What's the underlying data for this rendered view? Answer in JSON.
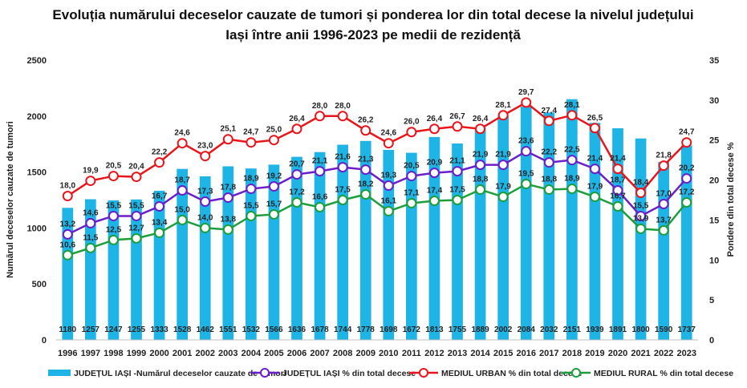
{
  "chart_data": {
    "type": "bar",
    "title_lines": [
      "Evoluția numărului deceselor cauzate de tumori și ponderea lor din total decese la nivelul județului",
      "Iași între anii 1996-2023 pe medii de rezidență"
    ],
    "ylabel": "Numărul deceselor cauzate de tumori",
    "y2label": "Pondere din total decese %",
    "ylim": [
      0,
      2500
    ],
    "y_ticks": [
      0,
      500,
      1000,
      1500,
      2000,
      2500
    ],
    "y2lim": [
      0,
      35
    ],
    "y2_ticks": [
      0,
      5,
      10,
      15,
      20,
      25,
      30,
      35
    ],
    "categories": [
      "1996",
      "1997",
      "1998",
      "1999",
      "2000",
      "2001",
      "2002",
      "2003",
      "2004",
      "2005",
      "2006",
      "2007",
      "2008",
      "2009",
      "2010",
      "2011",
      "2012",
      "2013",
      "2014",
      "2015",
      "2016",
      "2017",
      "2018",
      "2019",
      "2020",
      "2021",
      "2022",
      "2023"
    ],
    "bars": {
      "name": "JUDEȚUL IAȘI -Numărul deceselor cauzate de tumori",
      "color": "#1fb4e6",
      "values": [
        1180,
        1257,
        1247,
        1255,
        1333,
        1528,
        1462,
        1551,
        1532,
        1566,
        1636,
        1678,
        1744,
        1778,
        1698,
        1672,
        1813,
        1755,
        1889,
        2002,
        2084,
        2032,
        2151,
        1939,
        1891,
        1800,
        1590,
        1737
      ]
    },
    "series": [
      {
        "name": "JUDEȚUL IAȘI % din total decese",
        "color": "#6a1fc9",
        "axis": "right",
        "values": [
          13.2,
          14.6,
          15.5,
          15.5,
          16.7,
          18.7,
          17.3,
          17.8,
          18.9,
          19.2,
          20.7,
          21.1,
          21.6,
          21.3,
          19.3,
          20.5,
          20.9,
          21.1,
          21.9,
          21.9,
          23.6,
          22.2,
          22.5,
          21.4,
          18.7,
          15.5,
          17.0,
          20.2
        ],
        "labels": [
          "13,2",
          "14,6",
          "15,5",
          "15,5",
          "16,7",
          "18,7",
          "17,3",
          "17,8",
          "18,9",
          "19,2",
          "20,7",
          "21,1",
          "21,6",
          "21,3",
          "19,3",
          "20,5",
          "20,9",
          "21,1",
          "21,9",
          "21,9",
          "23,6",
          "22,2",
          "22,5",
          "21,4",
          "18,7",
          "15,5",
          "17,0",
          "20,2"
        ]
      },
      {
        "name": "MEDIUL URBAN % din total decese",
        "color": "#e8151b",
        "axis": "right",
        "values": [
          18.0,
          19.9,
          20.5,
          20.4,
          22.2,
          24.6,
          23.0,
          25.1,
          24.7,
          25.0,
          26.4,
          28.0,
          28.0,
          26.2,
          24.6,
          26.0,
          26.4,
          26.7,
          26.4,
          28.1,
          29.7,
          27.4,
          28.1,
          26.5,
          21.4,
          18.4,
          21.8,
          24.7
        ],
        "labels": [
          "18,0",
          "19,9",
          "20,5",
          "20,4",
          "22,2",
          "24,6",
          "23,0",
          "25,1",
          "24,7",
          "25,0",
          "26,4",
          "28,0",
          "28,0",
          "26,2",
          "24,6",
          "26,0",
          "26,4",
          "26,7",
          "26,4",
          "28,1",
          "29,7",
          "27,4",
          "28,1",
          "26,5",
          "21,4",
          "18,4",
          "21,8",
          "24,7"
        ]
      },
      {
        "name": "MEDIUL RURAL % din total decese",
        "color": "#1d9e3c",
        "axis": "right",
        "values": [
          10.6,
          11.5,
          12.5,
          12.7,
          13.4,
          15.0,
          14.0,
          13.8,
          15.5,
          15.7,
          17.2,
          16.6,
          17.5,
          18.2,
          16.1,
          17.1,
          17.4,
          17.5,
          18.8,
          17.9,
          19.5,
          18.8,
          18.9,
          17.9,
          16.7,
          13.9,
          13.7,
          17.2
        ],
        "labels": [
          "10,6",
          "11,5",
          "12,5",
          "12,7",
          "13,4",
          "15,0",
          "14,0",
          "13,8",
          "15,5",
          "15,7",
          "17,2",
          "16,6",
          "17,5",
          "18,2",
          "16,1",
          "17,1",
          "17,4",
          "17,5",
          "18,8",
          "17,9",
          "19,5",
          "18,8",
          "18,9",
          "17,9",
          "16,7",
          "13,9",
          "13,7",
          "17,2"
        ]
      }
    ],
    "legend_position": "bottom",
    "grid": false
  }
}
